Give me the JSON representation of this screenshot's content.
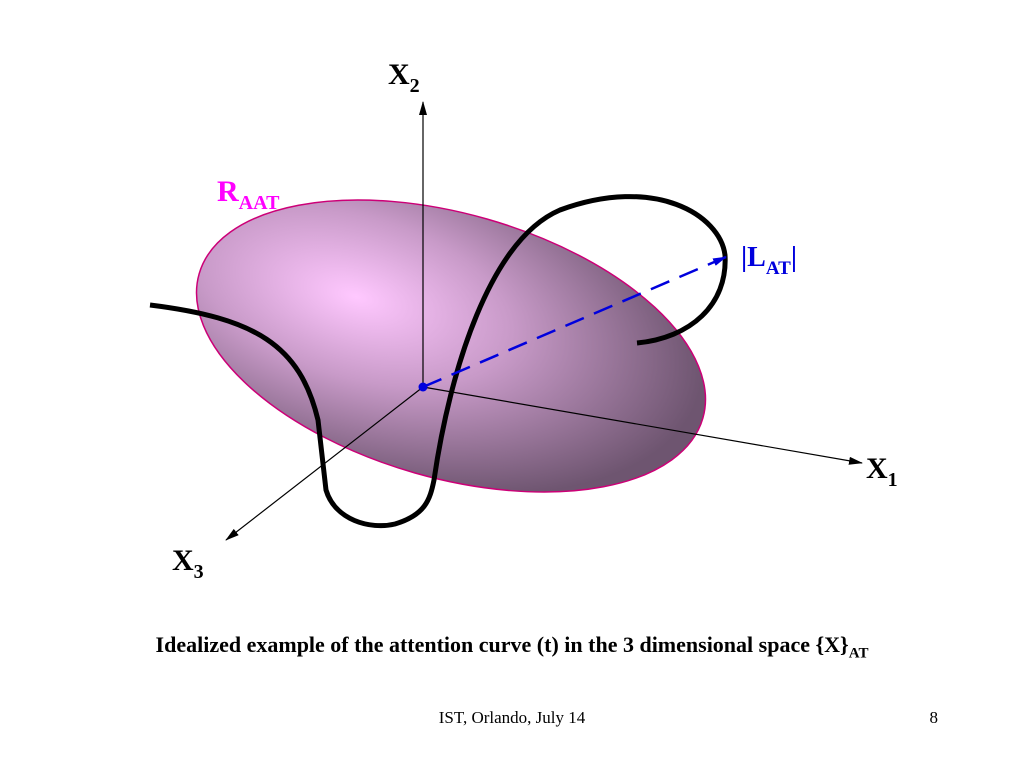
{
  "diagram": {
    "axes": {
      "x1": {
        "main": "X",
        "sub": "1"
      },
      "x2": {
        "main": "X",
        "sub": "2"
      },
      "x3": {
        "main": "X",
        "sub": "3"
      }
    },
    "region_label": {
      "main": "R",
      "sub": "AAT"
    },
    "vector_label": {
      "pre": "|L",
      "sub": "AT",
      "post": "|"
    },
    "colors": {
      "region_label": "#ff00ff",
      "region_edge": "#cc0077",
      "region_fill_center": "#ffc8ff",
      "region_fill_edge": "#6e5570",
      "vector": "#0000dd",
      "curve": "#000000",
      "axis": "#000000"
    }
  },
  "caption": {
    "text": "Idealized example of the attention curve (t) in the 3 dimensional space {X}",
    "sub": "AT"
  },
  "footer": {
    "center": "IST, Orlando, July 14",
    "page": "8"
  }
}
